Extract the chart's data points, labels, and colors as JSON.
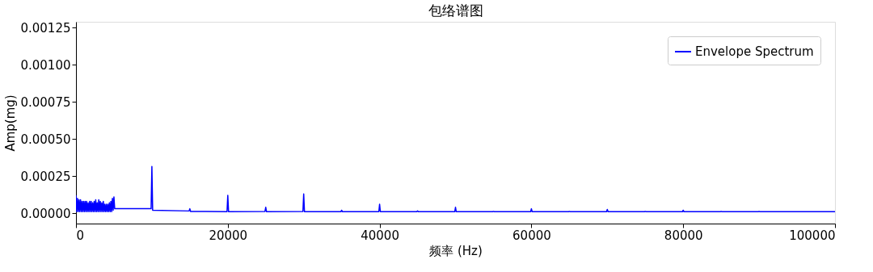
{
  "chart_data": {
    "type": "line",
    "title": "包络谱图",
    "xlabel": "频率 (Hz)",
    "ylabel": "Amp(mg)",
    "x": [
      0,
      100,
      200,
      300,
      400,
      500,
      600,
      700,
      800,
      900,
      1000,
      1100,
      1200,
      1300,
      1400,
      1500,
      1600,
      1700,
      1800,
      1900,
      2000,
      2100,
      2200,
      2300,
      2400,
      2500,
      2600,
      2700,
      2800,
      2900,
      3000,
      3100,
      3200,
      3300,
      3400,
      3500,
      3600,
      3700,
      3800,
      3900,
      4000,
      4100,
      4200,
      4300,
      4400,
      4500,
      4600,
      4700,
      4800,
      4900,
      5000,
      5100,
      9900,
      10000,
      10100,
      14900,
      15000,
      15100,
      19900,
      20000,
      20100,
      24900,
      25000,
      25100,
      29900,
      30000,
      30100,
      34900,
      35000,
      35100,
      39900,
      40000,
      40100,
      44900,
      45000,
      45100,
      49900,
      50000,
      50100,
      54900,
      55000,
      55100,
      59900,
      60000,
      60100,
      64900,
      65000,
      65100,
      69900,
      70000,
      70100,
      74900,
      75000,
      75100,
      79900,
      80000,
      80100,
      84900,
      85000,
      85100,
      89900,
      90000,
      90100,
      100000
    ],
    "series": [
      {
        "name": "Envelope Spectrum",
        "color": "#0000ff",
        "values": [
          0.00012,
          1e-05,
          0.0001,
          1e-05,
          9e-05,
          1e-05,
          9e-05,
          1e-05,
          8e-05,
          1e-05,
          8e-05,
          1e-05,
          8e-05,
          1e-05,
          8e-05,
          1e-05,
          7e-05,
          1e-05,
          8e-05,
          1e-05,
          8e-05,
          1e-05,
          7e-05,
          1e-05,
          8e-05,
          1e-05,
          9e-05,
          1e-05,
          7e-05,
          1e-05,
          9e-05,
          1e-05,
          8e-05,
          1e-05,
          7e-05,
          1e-05,
          8e-05,
          1e-05,
          6e-05,
          1e-05,
          6e-05,
          1e-05,
          6e-05,
          1e-05,
          7e-05,
          1e-05,
          8e-05,
          1e-05,
          0.0001,
          2e-05,
          0.00011,
          3e-05,
          3e-05,
          0.000315,
          2e-05,
          1.5e-05,
          3e-05,
          1.2e-05,
          1e-05,
          0.00012,
          1e-05,
          1.2e-05,
          4e-05,
          1e-05,
          1.2e-05,
          0.00013,
          1e-05,
          1e-05,
          2e-05,
          1e-05,
          1e-05,
          6e-05,
          1e-05,
          1e-05,
          1.5e-05,
          1e-05,
          1e-05,
          4e-05,
          1e-05,
          1e-05,
          1.2e-05,
          1e-05,
          1e-05,
          3e-05,
          1e-05,
          1e-05,
          1.2e-05,
          1e-05,
          1e-05,
          2.5e-05,
          1e-05,
          1e-05,
          1.2e-05,
          1e-05,
          1e-05,
          2e-05,
          1e-05,
          1e-05,
          1.2e-05,
          1e-05,
          1e-05,
          1.2e-05,
          1e-05,
          1e-05
        ]
      }
    ],
    "xlim": [
      0,
      100000
    ],
    "xticks": [
      0,
      20000,
      40000,
      60000,
      80000,
      100000
    ],
    "ylim": [
      -7e-05,
      0.00129
    ],
    "yticks": [
      {
        "value": 0,
        "label": "0.00000"
      },
      {
        "value": 0.00025,
        "label": "0.00025"
      },
      {
        "value": 0.0005,
        "label": "0.00050"
      },
      {
        "value": 0.00075,
        "label": "0.00075"
      },
      {
        "value": 0.001,
        "label": "0.00100"
      },
      {
        "value": 0.00125,
        "label": "0.00125"
      }
    ],
    "grid": false,
    "legend": "top right",
    "marker": "none",
    "line_style": "solid"
  }
}
